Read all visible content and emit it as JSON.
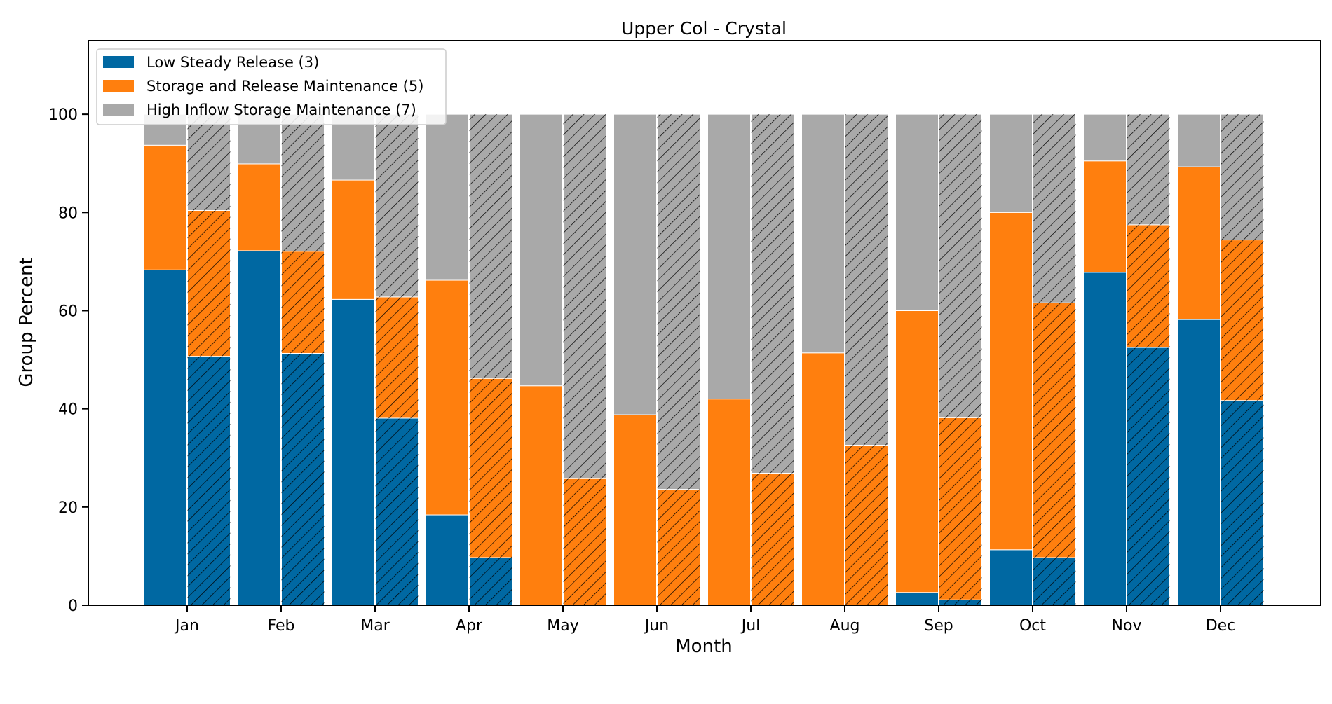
{
  "colors": {
    "low_steady": "#0068a2",
    "storage_release": "#ff7f0e",
    "high_inflow": "#a9a9a9",
    "hatch": "#000000",
    "axes": "#000000",
    "background": "#ffffff",
    "bar_edge": "#ffffff"
  },
  "chart_data": {
    "type": "bar",
    "stacked": true,
    "grouped": true,
    "title": "Upper Col - Crystal",
    "xlabel": "Month",
    "ylabel": "Group Percent",
    "ylim": [
      0,
      115
    ],
    "yticks": [
      0,
      20,
      40,
      60,
      80,
      100
    ],
    "grid": false,
    "legend_position": "top-left",
    "categories": [
      "Jan",
      "Feb",
      "Mar",
      "Apr",
      "May",
      "Jun",
      "Jul",
      "Aug",
      "Sep",
      "Oct",
      "Nov",
      "Dec"
    ],
    "series": [
      {
        "name": "Low Steady Release (3)",
        "color_key": "low_steady",
        "values_solid": [
          68.3,
          72.2,
          62.3,
          18.4,
          0,
          0,
          0,
          0,
          2.6,
          11.3,
          67.8,
          58.2
        ],
        "values_hatched": [
          50.7,
          51.3,
          38.1,
          9.7,
          0,
          0,
          0,
          0,
          1.1,
          9.7,
          52.5,
          41.7
        ]
      },
      {
        "name": "Storage and Release Maintenance (5)",
        "color_key": "storage_release",
        "values_solid": [
          25.4,
          17.7,
          24.3,
          47.8,
          44.7,
          38.8,
          42.0,
          51.4,
          57.4,
          68.7,
          22.7,
          31.1
        ],
        "values_hatched": [
          29.7,
          20.8,
          24.7,
          36.5,
          25.8,
          23.6,
          26.9,
          32.6,
          37.1,
          51.9,
          25.0,
          32.7
        ]
      },
      {
        "name": "High Inflow Storage Maintenance (7)",
        "color_key": "high_inflow",
        "values_solid": [
          6.3,
          10.1,
          13.4,
          33.8,
          55.3,
          61.2,
          58.0,
          48.6,
          40.0,
          20.0,
          9.5,
          10.7
        ],
        "values_hatched": [
          19.6,
          27.9,
          37.2,
          53.8,
          74.2,
          76.4,
          73.1,
          67.4,
          61.8,
          38.4,
          22.5,
          25.6
        ]
      }
    ]
  }
}
